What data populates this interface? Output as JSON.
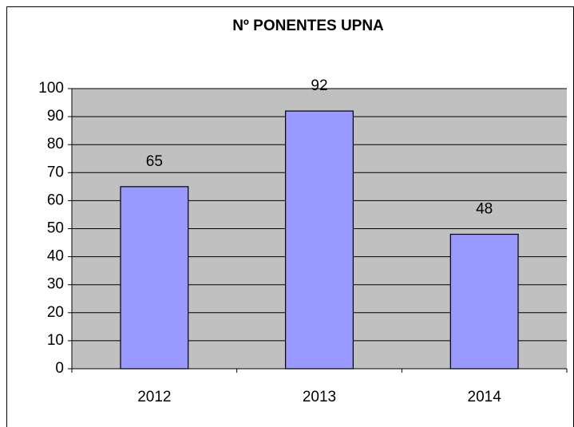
{
  "chart_data": {
    "type": "bar",
    "title": "Nº PONENTES UPNA",
    "categories": [
      "2012",
      "2013",
      "2014"
    ],
    "values": [
      65,
      92,
      48
    ],
    "color": "#9999ff",
    "ylim": [
      0,
      100
    ],
    "yticks": [
      0,
      10,
      20,
      30,
      40,
      50,
      60,
      70,
      80,
      90,
      100
    ],
    "grid": true
  }
}
